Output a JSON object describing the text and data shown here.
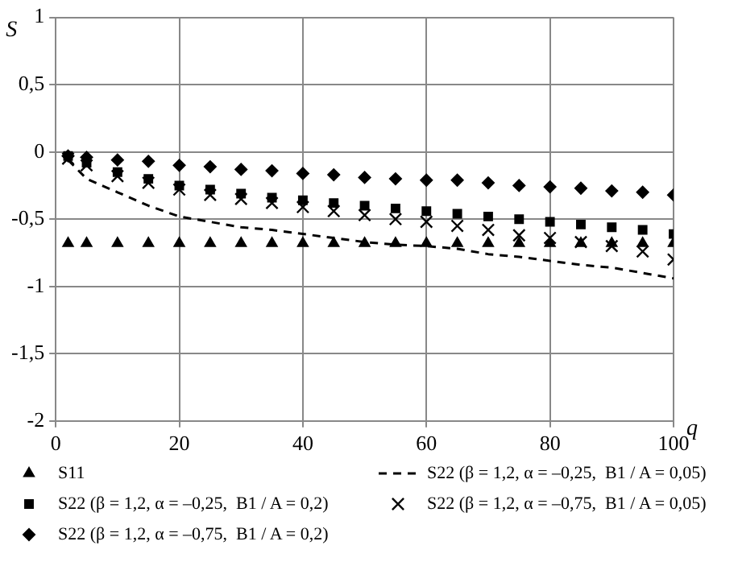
{
  "chart_data": {
    "type": "scatter",
    "xlabel": "q",
    "ylabel": "S",
    "x": [
      2,
      5,
      10,
      15,
      20,
      25,
      30,
      35,
      40,
      45,
      50,
      55,
      60,
      65,
      70,
      75,
      80,
      85,
      90,
      95,
      100
    ],
    "xlim": [
      0,
      100
    ],
    "xticks": [
      0,
      20,
      40,
      60,
      80,
      100
    ],
    "ylim": [
      -2,
      1
    ],
    "yticks": [
      {
        "value": -2,
        "label": "-2"
      },
      {
        "value": -1.5,
        "label": "-1,5"
      },
      {
        "value": -1,
        "label": "-1"
      },
      {
        "value": -0.5,
        "label": "-0,5"
      },
      {
        "value": 0,
        "label": "0"
      },
      {
        "value": 0.5,
        "label": "0,5"
      },
      {
        "value": 1,
        "label": "1"
      }
    ],
    "grid": true,
    "legend": "bottom",
    "series": [
      {
        "name": "S11",
        "color": "#000000",
        "marker": "triangle",
        "line_style": "none",
        "values": [
          -0.68,
          -0.68,
          -0.68,
          -0.68,
          -0.68,
          -0.68,
          -0.68,
          -0.68,
          -0.68,
          -0.68,
          -0.68,
          -0.68,
          -0.68,
          -0.68,
          -0.68,
          -0.68,
          -0.68,
          -0.68,
          -0.68,
          -0.68,
          -0.68
        ]
      },
      {
        "name": "S22 (β = 1,2, α = –0,25,  B1 / A = 0,05)",
        "color": "#000000",
        "type": "line",
        "marker": "none",
        "line_style": "dashed",
        "values": [
          -0.06,
          -0.2,
          -0.3,
          -0.4,
          -0.48,
          -0.52,
          -0.56,
          -0.58,
          -0.61,
          -0.64,
          -0.67,
          -0.69,
          -0.7,
          -0.72,
          -0.76,
          -0.78,
          -0.81,
          -0.84,
          -0.86,
          -0.9,
          -0.94
        ]
      },
      {
        "name": "S22 (β = 1,2, α = –0,25,  B1 / A = 0,2)",
        "color": "#000000",
        "marker": "square",
        "line_style": "none",
        "values": [
          -0.03,
          -0.08,
          -0.15,
          -0.2,
          -0.25,
          -0.28,
          -0.31,
          -0.34,
          -0.36,
          -0.38,
          -0.4,
          -0.42,
          -0.44,
          -0.46,
          -0.48,
          -0.5,
          -0.52,
          -0.54,
          -0.56,
          -0.58,
          -0.61
        ]
      },
      {
        "name": "S22 (β = 1,2, α = –0,75,  B1 / A = 0,05)",
        "color": "#000000",
        "marker": "cross",
        "line_style": "none",
        "values": [
          -0.05,
          -0.1,
          -0.18,
          -0.23,
          -0.28,
          -0.32,
          -0.35,
          -0.38,
          -0.41,
          -0.44,
          -0.47,
          -0.5,
          -0.52,
          -0.55,
          -0.58,
          -0.62,
          -0.64,
          -0.67,
          -0.7,
          -0.74,
          -0.8
        ]
      },
      {
        "name": "S22 (β = 1,2, α = –0,75,  B1 / A = 0,2)",
        "color": "#000000",
        "marker": "diamond",
        "line_style": "none",
        "values": [
          -0.03,
          -0.04,
          -0.06,
          -0.07,
          -0.1,
          -0.11,
          -0.13,
          -0.14,
          -0.16,
          -0.17,
          -0.19,
          -0.2,
          -0.21,
          -0.21,
          -0.23,
          -0.25,
          -0.26,
          -0.27,
          -0.29,
          -0.3,
          -0.32
        ]
      }
    ]
  }
}
